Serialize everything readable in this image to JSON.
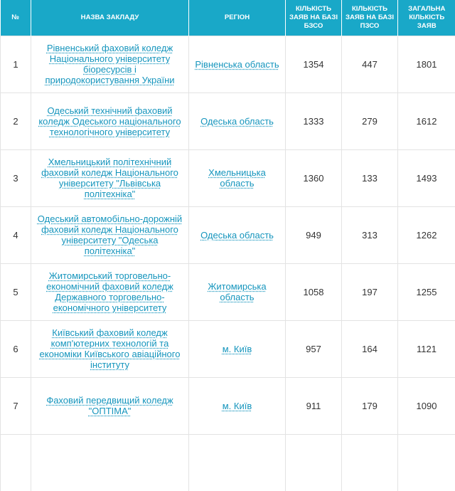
{
  "table": {
    "headers": {
      "num": "№",
      "name": "НАЗВА ЗАКЛАДУ",
      "region": "РЕГІОН",
      "bzso": "КІЛЬКІСТЬ ЗАЯВ НА БАЗІ БЗСО",
      "pzso": "КІЛЬКІСТЬ ЗАЯВ НА БАЗІ ПЗСО",
      "total": "ЗАГАЛЬНА КІЛЬКІСТЬ ЗАЯВ"
    },
    "rows": [
      {
        "num": "1",
        "name": "Рівненський фаховий коледж Національного університету біоресурсів і природокористування України",
        "region": "Рівненська область",
        "bzso": "1354",
        "pzso": "447",
        "total": "1801"
      },
      {
        "num": "2",
        "name": "Одеський технічний фаховий коледж Одеського національного технологічного університету",
        "region": "Одеська область",
        "bzso": "1333",
        "pzso": "279",
        "total": "1612"
      },
      {
        "num": "3",
        "name": "Хмельницький політехнічний фаховий коледж Національного університету \"Львівська політехніка\"",
        "region": "Хмельницька область",
        "bzso": "1360",
        "pzso": "133",
        "total": "1493"
      },
      {
        "num": "4",
        "name": "Одеський автомобільно-дорожній фаховий коледж Національного університету \"Одеська політехніка\"",
        "region": "Одеська область",
        "bzso": "949",
        "pzso": "313",
        "total": "1262"
      },
      {
        "num": "5",
        "name": "Житомирський торговельно-економічний фаховий коледж Державного торговельно-економічного університету",
        "region": "Житомирська область",
        "bzso": "1058",
        "pzso": "197",
        "total": "1255"
      },
      {
        "num": "6",
        "name": "Київський фаховий коледж комп'ютерних технологій та економіки Київського авіаційного інституту",
        "region": "м. Київ",
        "bzso": "957",
        "pzso": "164",
        "total": "1121"
      },
      {
        "num": "7",
        "name": "Фаховий передвищий коледж \"ОПТІМА\"",
        "region": "м. Київ",
        "bzso": "911",
        "pzso": "179",
        "total": "1090"
      }
    ]
  }
}
